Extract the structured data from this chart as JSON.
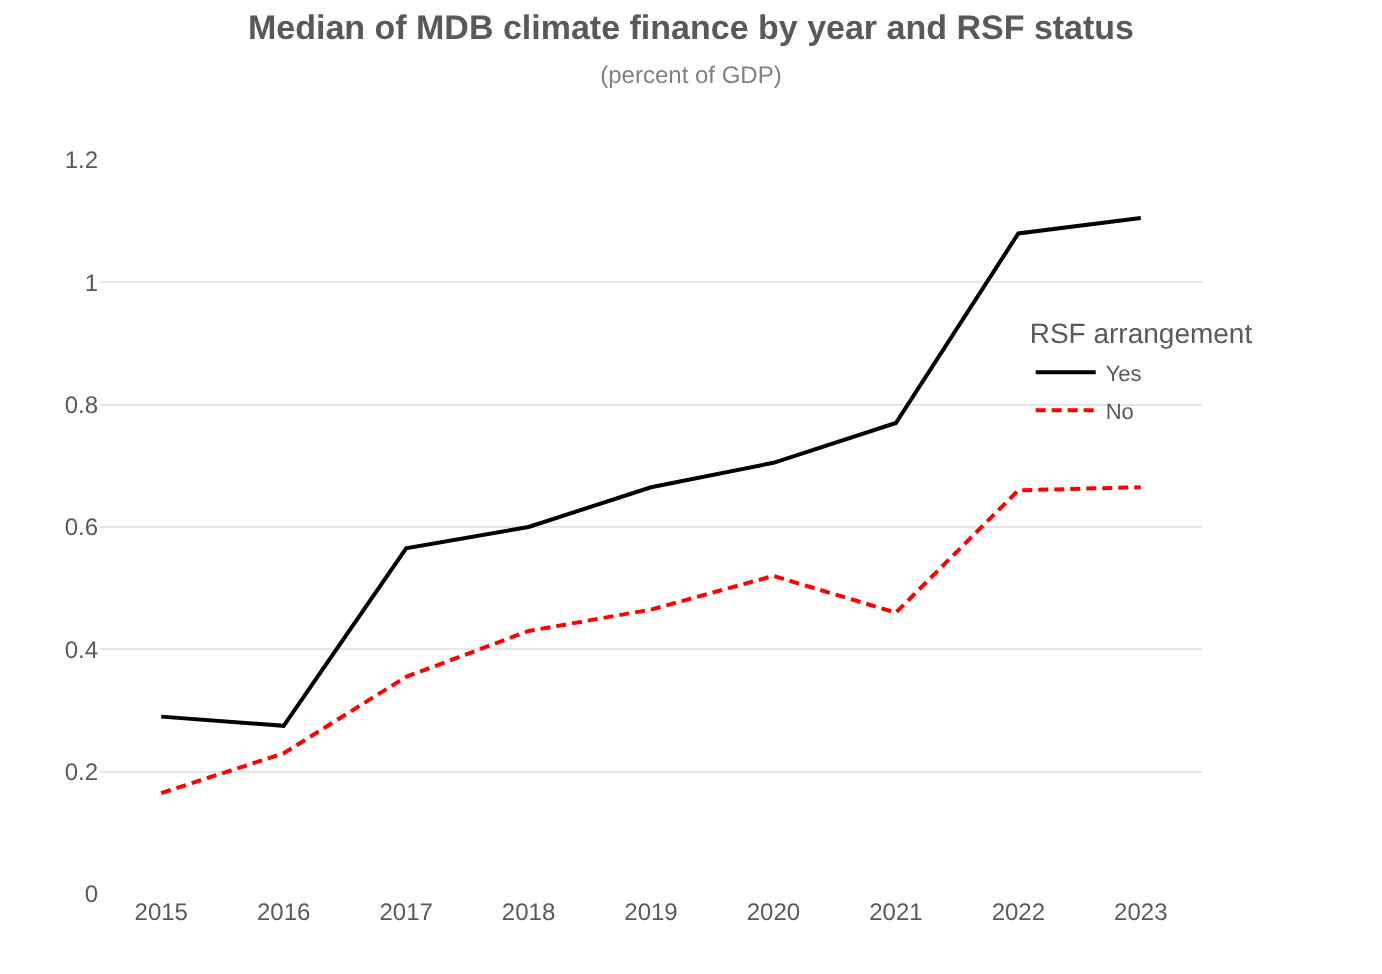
{
  "chart_data": {
    "type": "line",
    "title": "Median of MDB climate finance by year and RSF status",
    "subtitle": "(percent of GDP)",
    "legend_title": "RSF arrangement",
    "categories": [
      "2015",
      "2016",
      "2017",
      "2018",
      "2019",
      "2020",
      "2021",
      "2022",
      "2023"
    ],
    "series": [
      {
        "name": "Yes",
        "color": "#000000",
        "line_style": "solid",
        "values": [
          0.29,
          0.275,
          0.565,
          0.6,
          0.665,
          0.705,
          0.77,
          1.08,
          1.105
        ]
      },
      {
        "name": "No",
        "color": "#ff0000",
        "line_style": "dashed",
        "values": [
          0.165,
          0.23,
          0.355,
          0.43,
          0.465,
          0.52,
          0.46,
          0.66,
          0.665
        ]
      }
    ],
    "ylim": [
      0,
      1.2
    ],
    "yticks": [
      0,
      0.2,
      0.4,
      0.6,
      0.8,
      1,
      1.2
    ],
    "grid": "y",
    "legend": "right",
    "marker": "none"
  }
}
